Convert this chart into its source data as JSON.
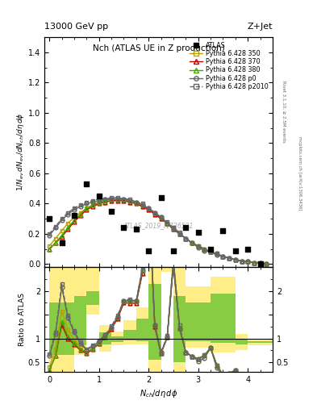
{
  "title_main": "Nch (ATLAS UE in Z production)",
  "header_left": "13000 GeV pp",
  "header_right": "Z+Jet",
  "watermark": "ATLAS_2019_I1736531",
  "right_label_top": "Rivet 3.1.10, ≥ 2.5M events",
  "right_label_bot": "mcplots.cern.ch [arXiv:1306.3436]",
  "xlabel": "$N_{ch}/d\\eta\\, d\\phi$",
  "ylabel_main": "$1/N_{ev}\\, dN_{ev}/dN_{ch}/d\\eta\\, d\\phi$",
  "ylabel_ratio": "Ratio to ATLAS",
  "xlim": [
    -0.1,
    4.5
  ],
  "ylim_main": [
    -0.02,
    1.5
  ],
  "ylim_ratio": [
    0.3,
    2.5
  ],
  "atlas_x": [
    0.0,
    0.25,
    0.5,
    0.75,
    1.0,
    1.25,
    1.5,
    1.75,
    2.0,
    2.25,
    2.5,
    2.75,
    3.0,
    3.25,
    3.5,
    3.75,
    4.0,
    4.25
  ],
  "atlas_y": [
    0.3,
    0.14,
    0.32,
    0.53,
    0.45,
    0.35,
    0.24,
    0.23,
    0.09,
    0.44,
    0.09,
    0.24,
    0.21,
    0.1,
    0.22,
    0.09,
    0.1,
    0.0
  ],
  "mc_x": [
    0.0,
    0.125,
    0.25,
    0.375,
    0.5,
    0.625,
    0.75,
    0.875,
    1.0,
    1.125,
    1.25,
    1.375,
    1.5,
    1.625,
    1.75,
    1.875,
    2.0,
    2.125,
    2.25,
    2.375,
    2.5,
    2.625,
    2.75,
    2.875,
    3.0,
    3.125,
    3.25,
    3.375,
    3.5,
    3.625,
    3.75,
    3.875,
    4.0,
    4.125,
    4.25,
    4.375
  ],
  "p350_y": [
    0.12,
    0.17,
    0.22,
    0.27,
    0.31,
    0.34,
    0.37,
    0.39,
    0.4,
    0.41,
    0.42,
    0.42,
    0.42,
    0.41,
    0.4,
    0.38,
    0.36,
    0.33,
    0.3,
    0.27,
    0.23,
    0.2,
    0.17,
    0.14,
    0.12,
    0.1,
    0.08,
    0.07,
    0.05,
    0.04,
    0.03,
    0.02,
    0.02,
    0.01,
    0.01,
    0.0
  ],
  "p370_y": [
    0.1,
    0.14,
    0.18,
    0.23,
    0.28,
    0.32,
    0.36,
    0.38,
    0.4,
    0.41,
    0.42,
    0.42,
    0.42,
    0.41,
    0.4,
    0.38,
    0.36,
    0.33,
    0.3,
    0.27,
    0.23,
    0.2,
    0.17,
    0.14,
    0.12,
    0.1,
    0.08,
    0.07,
    0.05,
    0.04,
    0.03,
    0.02,
    0.02,
    0.01,
    0.01,
    0.0
  ],
  "p380_y": [
    0.1,
    0.14,
    0.19,
    0.24,
    0.29,
    0.33,
    0.37,
    0.39,
    0.41,
    0.42,
    0.43,
    0.43,
    0.43,
    0.42,
    0.41,
    0.39,
    0.37,
    0.34,
    0.31,
    0.27,
    0.24,
    0.2,
    0.17,
    0.14,
    0.12,
    0.1,
    0.08,
    0.07,
    0.05,
    0.04,
    0.03,
    0.02,
    0.02,
    0.01,
    0.01,
    0.0
  ],
  "pp0_y": [
    0.19,
    0.24,
    0.29,
    0.33,
    0.36,
    0.38,
    0.4,
    0.41,
    0.42,
    0.43,
    0.43,
    0.43,
    0.43,
    0.42,
    0.41,
    0.39,
    0.37,
    0.34,
    0.31,
    0.27,
    0.23,
    0.2,
    0.17,
    0.14,
    0.11,
    0.09,
    0.08,
    0.06,
    0.05,
    0.04,
    0.03,
    0.02,
    0.02,
    0.01,
    0.01,
    0.0
  ],
  "pp2010_y": [
    0.2,
    0.25,
    0.3,
    0.34,
    0.37,
    0.39,
    0.41,
    0.42,
    0.43,
    0.43,
    0.44,
    0.44,
    0.43,
    0.43,
    0.41,
    0.4,
    0.37,
    0.34,
    0.31,
    0.28,
    0.24,
    0.21,
    0.17,
    0.14,
    0.12,
    0.1,
    0.08,
    0.07,
    0.05,
    0.04,
    0.03,
    0.02,
    0.02,
    0.01,
    0.01,
    0.0
  ],
  "color_p350": "#b8a000",
  "color_p370": "#cc0000",
  "color_p380": "#44aa00",
  "color_pp0": "#666666",
  "color_pp2010": "#666666",
  "band_x_edges": [
    0.0,
    0.25,
    0.5,
    0.75,
    1.0,
    1.25,
    1.5,
    1.75,
    2.0,
    2.25,
    2.5,
    2.75,
    3.0,
    3.25,
    3.5,
    3.75,
    4.0,
    4.25,
    4.5
  ],
  "yellow_lo": [
    0.3,
    0.3,
    0.65,
    1.5,
    0.72,
    0.85,
    0.88,
    0.88,
    0.3,
    2.4,
    0.3,
    0.8,
    0.8,
    0.7,
    0.7,
    0.75,
    0.85,
    0.85
  ],
  "yellow_hi": [
    2.5,
    2.5,
    2.5,
    2.5,
    1.28,
    1.15,
    1.38,
    1.65,
    2.9,
    2.9,
    2.5,
    2.1,
    2.1,
    2.3,
    2.3,
    1.1,
    0.97,
    0.97
  ],
  "green_lo": [
    0.65,
    0.65,
    0.85,
    1.7,
    0.87,
    0.93,
    0.96,
    0.95,
    0.55,
    2.5,
    0.5,
    0.95,
    0.95,
    0.9,
    0.9,
    0.87,
    0.91,
    0.91
  ],
  "green_hi": [
    1.75,
    1.75,
    1.9,
    2.0,
    1.12,
    1.05,
    1.18,
    1.42,
    2.15,
    2.8,
    1.9,
    1.75,
    1.75,
    1.95,
    1.95,
    1.0,
    0.94,
    0.94
  ]
}
